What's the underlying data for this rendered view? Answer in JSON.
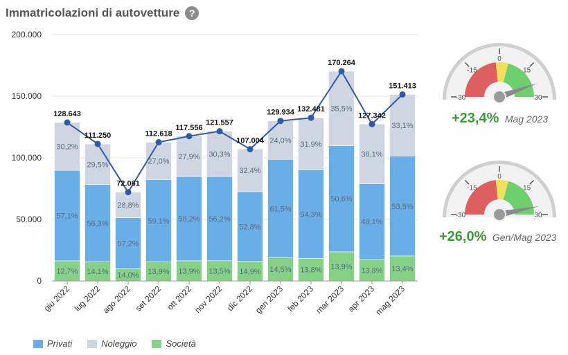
{
  "header": {
    "title": "Immatricolazioni di autovetture",
    "help_icon": "?"
  },
  "colors": {
    "privati": "#6aaee8",
    "noleggio": "#cfd6e1",
    "societa": "#86d188",
    "line": "#2f5aa8"
  },
  "chart_data": {
    "type": "bar",
    "stacked": true,
    "categories": [
      "giu 2022",
      "lug 2022",
      "ago 2022",
      "set 2022",
      "ott 2022",
      "nov 2022",
      "dic 2022",
      "gen 2023",
      "feb 2023",
      "mar 2023",
      "apr 2023",
      "mag 2023"
    ],
    "totals": [
      128643,
      111250,
      72061,
      112618,
      117556,
      121557,
      107004,
      129934,
      132481,
      170264,
      127342,
      151413
    ],
    "total_labels": [
      "128.643",
      "111.250",
      "72.061",
      "112.618",
      "117.556",
      "121.557",
      "107.004",
      "129.934",
      "132.481",
      "170.264",
      "127.342",
      "151.413"
    ],
    "series": [
      {
        "name": "Società",
        "key": "societa",
        "pct": [
          12.7,
          14.1,
          14.0,
          13.9,
          13.9,
          13.5,
          14.9,
          14.5,
          13.8,
          13.9,
          13.8,
          13.4
        ],
        "labels": [
          "12,7%",
          "14,1%",
          "14,0%",
          "13,9%",
          "13,9%",
          "13,5%",
          "14,9%",
          "14,5%",
          "13,8%",
          "13,9%",
          "13,8%",
          "13,4%"
        ]
      },
      {
        "name": "Privati",
        "key": "privati",
        "pct": [
          57.1,
          56.3,
          57.2,
          59.1,
          58.2,
          56.2,
          52.8,
          61.5,
          54.3,
          50.6,
          48.1,
          53.5
        ],
        "labels": [
          "57,1%",
          "56,3%",
          "57,2%",
          "59,1%",
          "58,2%",
          "56,2%",
          "52,8%",
          "61,5%",
          "54,3%",
          "50,6%",
          "48,1%",
          "53,5%"
        ]
      },
      {
        "name": "Noleggio",
        "key": "noleggio",
        "pct": [
          30.2,
          29.5,
          28.8,
          27.0,
          27.9,
          30.3,
          32.4,
          24.0,
          31.9,
          35.5,
          38.1,
          33.1
        ],
        "labels": [
          "30,2%",
          "29,5%",
          "28,8%",
          "27,0%",
          "27,9%",
          "30,3%",
          "32,4%",
          "24,0%",
          "31,9%",
          "35,5%",
          "38,1%",
          "33,1%"
        ]
      }
    ],
    "ylim": [
      0,
      200000
    ],
    "yticks": [
      0,
      50000,
      100000,
      150000,
      200000
    ],
    "ytick_labels": [
      "0",
      "50.000",
      "100.000",
      "150.000",
      "200.000"
    ],
    "legend": [
      "Privati",
      "Noleggio",
      "Società"
    ],
    "legend_position": "bottom-left",
    "grid": true
  },
  "gauges": [
    {
      "value_pct": 23.4,
      "value_label": "+23,4%",
      "period": "Mag 2023",
      "min": -30,
      "max": 30,
      "tick_labels": [
        "-30",
        "-15",
        "0",
        "15",
        "30"
      ]
    },
    {
      "value_pct": 26.0,
      "value_label": "+26,0%",
      "period": "Gen/Mag 2023",
      "min": -30,
      "max": 30,
      "tick_labels": [
        "-30",
        "-15",
        "0",
        "15",
        "30"
      ]
    }
  ]
}
